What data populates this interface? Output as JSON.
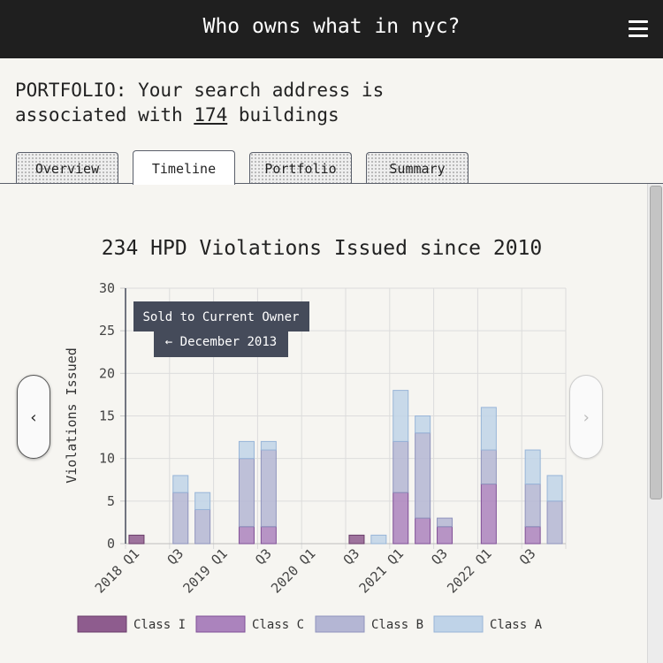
{
  "app": {
    "title": "Who owns what in nyc?"
  },
  "portfolio": {
    "prefix": "PORTFOLIO: Your search address is",
    "line2_before": "associated with",
    "building_count": "174",
    "line2_after": "buildings"
  },
  "tabs": [
    "Overview",
    "Timeline",
    "Portfolio",
    "Summary"
  ],
  "active_tab": "Timeline",
  "nav": {
    "prev": "‹",
    "next": "›"
  },
  "annotation": {
    "line1": "Sold to Current Owner",
    "line2": "← December 2013"
  },
  "colors": {
    "class_i": "#8e5c8e",
    "class_c": "#ab83bd",
    "class_b": "#b4b6d4",
    "class_a": "#bfd3e8",
    "annotation_bg": "#454b5a",
    "topbar": "#1f1f1f"
  },
  "chart_data": {
    "type": "bar",
    "stacked": true,
    "title": "234 HPD Violations Issued since 2010",
    "xlabel": "",
    "ylabel": "Violations Issued",
    "ylim": [
      0,
      30
    ],
    "yticks": [
      0,
      5,
      10,
      15,
      20,
      25,
      30
    ],
    "categories": [
      "2018 Q1",
      "2018 Q2",
      "2018 Q3",
      "2018 Q4",
      "2019 Q1",
      "2019 Q2",
      "2019 Q3",
      "2019 Q4",
      "2020 Q1",
      "2020 Q2",
      "2020 Q3",
      "2020 Q4",
      "2021 Q1",
      "2021 Q2",
      "2021 Q3",
      "2021 Q4",
      "2022 Q1",
      "2022 Q2",
      "2022 Q3",
      "2022 Q4"
    ],
    "tick_labels": [
      "2018 Q1",
      "",
      "Q3",
      "",
      "2019 Q1",
      "",
      "Q3",
      "",
      "2020 Q1",
      "",
      "Q3",
      "",
      "2021 Q1",
      "",
      "Q3",
      "",
      "2022 Q1",
      "",
      "Q3",
      ""
    ],
    "series": [
      {
        "name": "Class I",
        "values": [
          1,
          0,
          0,
          0,
          0,
          0,
          0,
          0,
          0,
          0,
          1,
          0,
          0,
          0,
          0,
          0,
          0,
          0,
          0,
          0
        ]
      },
      {
        "name": "Class C",
        "values": [
          0,
          0,
          0,
          0,
          0,
          2,
          2,
          0,
          0,
          0,
          0,
          0,
          6,
          3,
          2,
          0,
          7,
          0,
          2,
          0
        ]
      },
      {
        "name": "Class B",
        "values": [
          0,
          0,
          6,
          4,
          0,
          8,
          9,
          0,
          0,
          0,
          0,
          0,
          6,
          10,
          1,
          0,
          4,
          0,
          5,
          5
        ]
      },
      {
        "name": "Class A",
        "values": [
          0,
          0,
          2,
          2,
          0,
          2,
          1,
          0,
          0,
          0,
          0,
          1,
          6,
          2,
          0,
          0,
          5,
          0,
          4,
          3
        ]
      }
    ],
    "legend": [
      "Class I",
      "Class C",
      "Class B",
      "Class A"
    ],
    "legend_position": "bottom"
  }
}
